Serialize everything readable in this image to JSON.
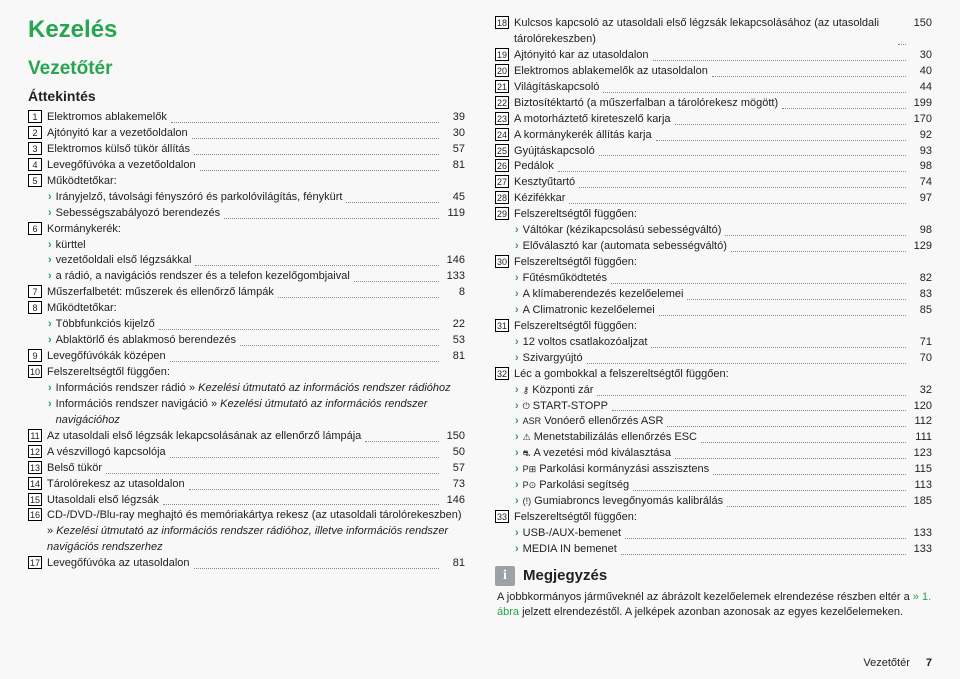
{
  "heading1": "Kezelés",
  "heading2": "Vezetőtér",
  "heading3": "Áttekintés",
  "left": [
    {
      "n": "1",
      "t": "Elektromos ablakemelők",
      "p": "39"
    },
    {
      "n": "2",
      "t": "Ajtónyitó kar a vezetőoldalon",
      "p": "30"
    },
    {
      "n": "3",
      "t": "Elektromos külső tükör állítás",
      "p": "57"
    },
    {
      "n": "4",
      "t": "Levegőfúvóka a vezetőoldalon",
      "p": "81"
    },
    {
      "n": "5",
      "t": "Működtetőkar:",
      "children": [
        {
          "a": true,
          "t": "Irányjelző, távolsági fényszóró és parkolóvilágítás, fénykürt",
          "p": "45"
        },
        {
          "a": true,
          "t": "Sebességszabályozó berendezés",
          "p": "119"
        }
      ]
    },
    {
      "n": "6",
      "t": "Kormánykerék:",
      "children": [
        {
          "a": true,
          "t": "kürttel"
        },
        {
          "a": true,
          "t": "vezetőoldali első légzsákkal",
          "p": "146"
        },
        {
          "a": true,
          "t": "a rádió, a navigációs rendszer és a telefon kezelőgombjaival",
          "p": "133"
        }
      ]
    },
    {
      "n": "7",
      "t": "Műszerfalbetét: műszerek és ellenőrző lámpák",
      "p": "8"
    },
    {
      "n": "8",
      "t": "Működtetőkar:",
      "children": [
        {
          "a": true,
          "t": "Többfunkciós kijelző",
          "p": "22"
        },
        {
          "a": true,
          "t": "Ablaktörlő és ablakmosó berendezés",
          "p": "53"
        }
      ]
    },
    {
      "n": "9",
      "t": "Levegőfúvókák középen",
      "p": "81"
    },
    {
      "n": "10",
      "t": "Felszereltségtől függően:",
      "children": [
        {
          "a": true,
          "t": "Információs rendszer rádió » Kezelési útmutató az információs rendszer rádióhoz",
          "it": true
        },
        {
          "a": true,
          "t": "Információs rendszer navigáció » Kezelési útmutató az információs rendszer navigációhoz",
          "it": true
        }
      ]
    },
    {
      "n": "11",
      "t": "Az utasoldali első légzsák lekapcsolásának az ellenőrző lámpája",
      "p": "150"
    },
    {
      "n": "12",
      "t": "A vészvillogó kapcsolója",
      "p": "50"
    },
    {
      "n": "13",
      "t": "Belső tükör",
      "p": "57"
    },
    {
      "n": "14",
      "t": "Tárolórekesz az utasoldalon",
      "p": "73"
    },
    {
      "n": "15",
      "t": "Utasoldali első légzsák",
      "p": "146"
    },
    {
      "n": "16",
      "t": "CD-/DVD-/Blu-ray meghajtó és memóriakártya rekesz (az utasoldali tárolórekeszben) » Kezelési útmutató az információs rendszer rádióhoz, illetve információs rendszer navigációs rendszerhez",
      "it": true
    },
    {
      "n": "17",
      "t": "Levegőfúvóka az utasoldalon",
      "p": "81"
    }
  ],
  "right": [
    {
      "n": "18",
      "t": "Kulcsos kapcsoló az utasoldali első légzsák lekapcsolásához (az utasoldali tárolórekeszben)",
      "p": "150"
    },
    {
      "n": "19",
      "t": "Ajtónyitó kar az utasoldalon",
      "p": "30"
    },
    {
      "n": "20",
      "t": "Elektromos ablakemelők az utasoldalon",
      "p": "40"
    },
    {
      "n": "21",
      "t": "Világításkapcsoló",
      "p": "44"
    },
    {
      "n": "22",
      "t": "Biztosítéktartó (a műszerfalban a tárolórekesz mögött)",
      "p": "199"
    },
    {
      "n": "23",
      "t": "A motorháztető kireteszelő karja",
      "p": "170"
    },
    {
      "n": "24",
      "t": "A kormánykerék állítás karja",
      "p": "92"
    },
    {
      "n": "25",
      "t": "Gyújtáskapcsoló",
      "p": "93"
    },
    {
      "n": "26",
      "t": "Pedálok",
      "p": "98"
    },
    {
      "n": "27",
      "t": "Kesztyűtartó",
      "p": "74"
    },
    {
      "n": "28",
      "t": "Kézifékkar",
      "p": "97"
    },
    {
      "n": "29",
      "t": "Felszereltségtől függően:",
      "children": [
        {
          "a": true,
          "t": "Váltókar (kézikapcsolású sebességváltó)",
          "p": "98"
        },
        {
          "a": true,
          "t": "Előválasztó kar (automata sebességváltó)",
          "p": "129"
        }
      ]
    },
    {
      "n": "30",
      "t": "Felszereltségtől függően:",
      "children": [
        {
          "a": true,
          "t": "Fűtésműködtetés",
          "p": "82"
        },
        {
          "a": true,
          "t": "A klímaberendezés kezelőelemei",
          "p": "83"
        },
        {
          "a": true,
          "t": "A Climatronic kezelőelemei",
          "p": "85"
        }
      ]
    },
    {
      "n": "31",
      "t": "Felszereltségtől függően:",
      "children": [
        {
          "a": true,
          "t": "12 voltos csatlakozóaljzat",
          "p": "71"
        },
        {
          "a": true,
          "t": "Szivargyújtó",
          "p": "70"
        }
      ]
    },
    {
      "n": "32",
      "t": "Léc a gombokkal a felszereltségtől függően:",
      "children": [
        {
          "a": true,
          "g": "⚷",
          "t": "Központi zár",
          "p": "32"
        },
        {
          "a": true,
          "g": "⏻",
          "t": "START-STOPP",
          "p": "120"
        },
        {
          "a": true,
          "g": "ASR",
          "t": "Vonóerő ellenőrzés ASR",
          "p": "112"
        },
        {
          "a": true,
          "g": "⚠",
          "t": "Menetstabilizálás ellenőrzés ESC",
          "p": "111"
        },
        {
          "a": true,
          "g": "⛐",
          "t": "A vezetési mód kiválasztása",
          "p": "123"
        },
        {
          "a": true,
          "g": "P⊞",
          "t": "Parkolási kormányzási asszisztens",
          "p": "115"
        },
        {
          "a": true,
          "g": "P⊙",
          "t": "Parkolási segítség",
          "p": "113"
        },
        {
          "a": true,
          "g": "(!)",
          "t": "Gumiabroncs levegőnyomás kalibrálás",
          "p": "185"
        }
      ]
    },
    {
      "n": "33",
      "t": "Felszereltségtől függően:",
      "children": [
        {
          "a": true,
          "t": "USB-/AUX-bemenet",
          "p": "133"
        },
        {
          "a": true,
          "t": "MEDIA IN bemenet",
          "p": "133"
        }
      ]
    }
  ],
  "note": {
    "title": "Megjegyzés",
    "text1": "A jobbkormányos járműveknél az ábrázolt kezelőelemek elrendezése részben eltér a ",
    "ref": "» 1. ábra",
    "text2": " jelzett elrendezéstől. A jelképek azonban azonosak az egyes kezelőelemeken."
  },
  "footer": {
    "section": "Vezetőtér",
    "page": "7"
  }
}
